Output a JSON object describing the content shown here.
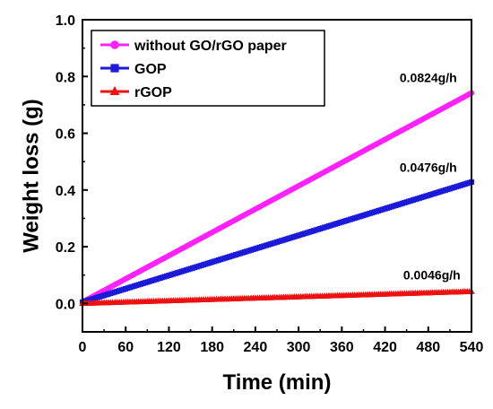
{
  "chart_data": {
    "type": "line",
    "xlabel": "Time (min)",
    "ylabel": "Weight loss (g)",
    "xlim": [
      0,
      540
    ],
    "ylim": [
      -0.1,
      1.0
    ],
    "xticks": [
      0,
      60,
      120,
      180,
      240,
      300,
      360,
      420,
      480,
      540
    ],
    "yticks": [
      0.0,
      0.2,
      0.4,
      0.6,
      0.8,
      1.0
    ],
    "grid": false,
    "legend_position": "top-left",
    "series": [
      {
        "name": "without GO/rGO paper",
        "color": "#ff22ff",
        "marker": "circle",
        "x_range": [
          0,
          540
        ],
        "y_range": [
          0.005,
          0.742
        ]
      },
      {
        "name": "GOP",
        "color": "#1a1ad8",
        "marker": "square",
        "x_range": [
          0,
          540
        ],
        "y_range": [
          0.005,
          0.428
        ]
      },
      {
        "name": "rGOP",
        "color": "#ee1111",
        "marker": "triangle",
        "x_range": [
          0,
          540
        ],
        "y_range": [
          0.0,
          0.042
        ]
      }
    ],
    "annotations": [
      {
        "text": "0.0824g/h",
        "x": 480,
        "y": 0.78
      },
      {
        "text": "0.0476g/h",
        "x": 480,
        "y": 0.465
      },
      {
        "text": "0.0046g/h",
        "x": 485,
        "y": 0.085
      }
    ]
  }
}
